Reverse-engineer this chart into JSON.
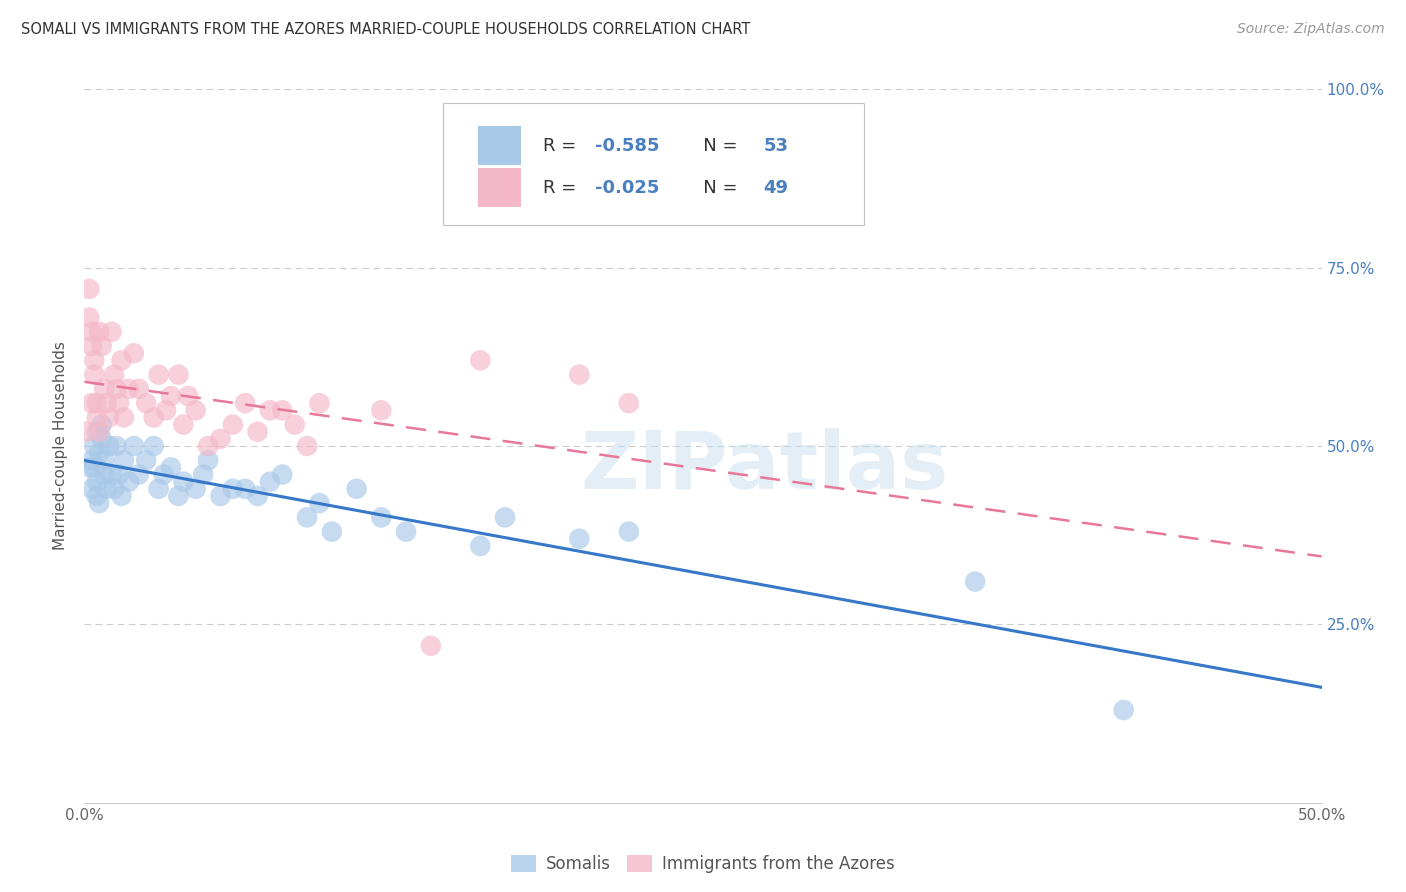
{
  "title": "SOMALI VS IMMIGRANTS FROM THE AZORES MARRIED-COUPLE HOUSEHOLDS CORRELATION CHART",
  "source": "Source: ZipAtlas.com",
  "ylabel": "Married-couple Households",
  "xlim": [
    0.0,
    0.5
  ],
  "ylim": [
    0.0,
    1.0
  ],
  "xticks": [
    0.0,
    0.1,
    0.2,
    0.3,
    0.4,
    0.5
  ],
  "xticklabels": [
    "0.0%",
    "",
    "",
    "",
    "",
    "50.0%"
  ],
  "yticks": [
    0.0,
    0.25,
    0.5,
    0.75,
    1.0
  ],
  "yticklabels_right": [
    "",
    "25.0%",
    "50.0%",
    "75.0%",
    "100.0%"
  ],
  "somali_color": "#a8c8e8",
  "azores_color": "#f4b8c8",
  "somali_line_color": "#3878c8",
  "azores_line_color": "#e87898",
  "somali_R": -0.585,
  "somali_N": 53,
  "azores_R": -0.025,
  "azores_N": 49,
  "legend_label_somali": "Somalis",
  "legend_label_azores": "Immigrants from the Azores",
  "legend_text_color": "#4a7fc0",
  "legend_R_label_color": "#333333",
  "watermark": "ZIPatlas",
  "somali_x": [
    0.002,
    0.003,
    0.003,
    0.004,
    0.004,
    0.005,
    0.005,
    0.005,
    0.006,
    0.006,
    0.007,
    0.007,
    0.008,
    0.008,
    0.009,
    0.01,
    0.011,
    0.012,
    0.013,
    0.014,
    0.015,
    0.016,
    0.018,
    0.02,
    0.022,
    0.025,
    0.028,
    0.03,
    0.032,
    0.035,
    0.038,
    0.04,
    0.045,
    0.048,
    0.05,
    0.055,
    0.06,
    0.065,
    0.07,
    0.075,
    0.08,
    0.09,
    0.095,
    0.1,
    0.11,
    0.12,
    0.13,
    0.16,
    0.17,
    0.2,
    0.22,
    0.36,
    0.42
  ],
  "somali_y": [
    0.47,
    0.44,
    0.48,
    0.5,
    0.47,
    0.43,
    0.52,
    0.45,
    0.49,
    0.42,
    0.51,
    0.53,
    0.48,
    0.46,
    0.44,
    0.5,
    0.46,
    0.44,
    0.5,
    0.46,
    0.43,
    0.48,
    0.45,
    0.5,
    0.46,
    0.48,
    0.5,
    0.44,
    0.46,
    0.47,
    0.43,
    0.45,
    0.44,
    0.46,
    0.48,
    0.43,
    0.44,
    0.44,
    0.43,
    0.45,
    0.46,
    0.4,
    0.42,
    0.38,
    0.44,
    0.4,
    0.38,
    0.36,
    0.4,
    0.37,
    0.38,
    0.31,
    0.13
  ],
  "azores_x": [
    0.001,
    0.002,
    0.002,
    0.003,
    0.003,
    0.003,
    0.004,
    0.004,
    0.005,
    0.005,
    0.006,
    0.006,
    0.007,
    0.008,
    0.009,
    0.01,
    0.011,
    0.012,
    0.013,
    0.014,
    0.015,
    0.016,
    0.018,
    0.02,
    0.022,
    0.025,
    0.028,
    0.03,
    0.033,
    0.035,
    0.038,
    0.04,
    0.042,
    0.045,
    0.05,
    0.055,
    0.06,
    0.065,
    0.07,
    0.075,
    0.08,
    0.085,
    0.09,
    0.095,
    0.12,
    0.14,
    0.16,
    0.2,
    0.22
  ],
  "azores_y": [
    0.52,
    0.68,
    0.72,
    0.56,
    0.64,
    0.66,
    0.6,
    0.62,
    0.54,
    0.56,
    0.52,
    0.66,
    0.64,
    0.58,
    0.56,
    0.54,
    0.66,
    0.6,
    0.58,
    0.56,
    0.62,
    0.54,
    0.58,
    0.63,
    0.58,
    0.56,
    0.54,
    0.6,
    0.55,
    0.57,
    0.6,
    0.53,
    0.57,
    0.55,
    0.5,
    0.51,
    0.53,
    0.56,
    0.52,
    0.55,
    0.55,
    0.53,
    0.5,
    0.56,
    0.55,
    0.22,
    0.62,
    0.6,
    0.56
  ],
  "background_color": "#ffffff",
  "grid_color": "#cccccc"
}
